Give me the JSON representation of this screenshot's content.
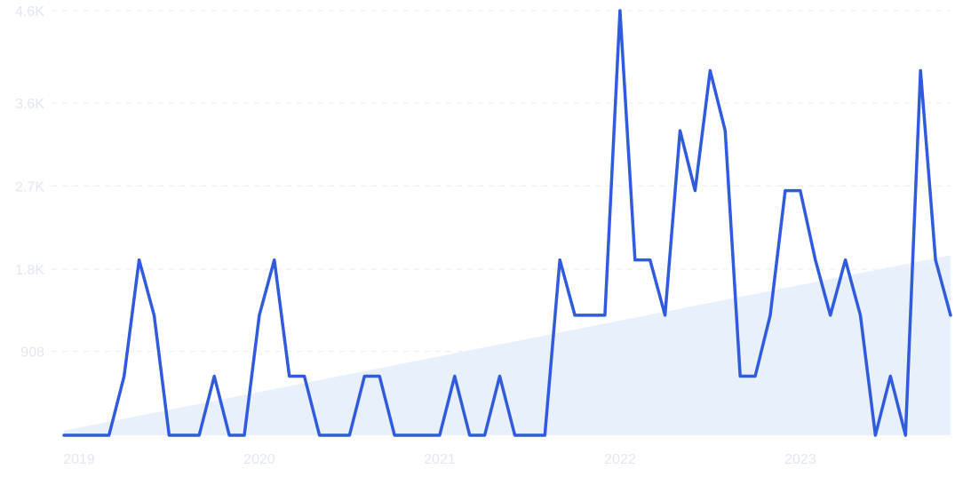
{
  "chart_data": {
    "type": "line",
    "title": "",
    "xlabel": "",
    "ylabel": "",
    "grid": true,
    "y_ticks": [
      "908",
      "1.8K",
      "2.7K",
      "3.6K",
      "4.6K"
    ],
    "y_tick_values": [
      908,
      1800,
      2700,
      3600,
      4600
    ],
    "x_ticks": [
      "2019",
      "2020",
      "2021",
      "2022",
      "2023"
    ],
    "ylim": [
      0,
      4600
    ],
    "x_start": "2019-01",
    "colors": {
      "line": "#2f5bdc",
      "trend_fill": "#e4edfc",
      "grid": "#e8ebf4",
      "tick_text": "#e2e6f3"
    },
    "trend": {
      "start": 50,
      "end": 1950
    },
    "values": [
      0,
      0,
      0,
      0,
      640,
      1900,
      1300,
      0,
      0,
      0,
      640,
      0,
      0,
      1300,
      1900,
      640,
      640,
      0,
      0,
      0,
      640,
      640,
      0,
      0,
      0,
      0,
      640,
      0,
      0,
      640,
      0,
      0,
      0,
      1900,
      1300,
      1300,
      1300,
      4600,
      1900,
      1900,
      1300,
      3300,
      2650,
      3950,
      3300,
      640,
      640,
      1300,
      2650,
      2650,
      1900,
      1300,
      1900,
      1300,
      0,
      640,
      0,
      3950,
      1900,
      1300
    ]
  }
}
